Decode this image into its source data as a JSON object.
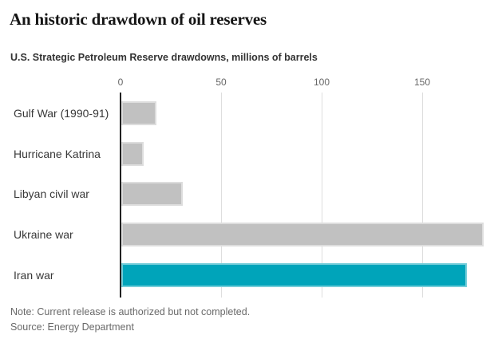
{
  "figure": {
    "title": "An historic drawdown of oil reserves",
    "subtitle": "U.S. Strategic Petroleum Reserve drawdowns, millions of barrels",
    "note": "Note: Current release is authorized but not completed.",
    "source": "Source: Energy Department"
  },
  "chart_data": {
    "type": "bar",
    "orientation": "horizontal",
    "title": "An historic drawdown of oil reserves",
    "subtitle": "U.S. Strategic Petroleum Reserve drawdowns, millions of barrels",
    "unit": "millions of barrels",
    "categories": [
      "Gulf War (1990-91)",
      "Hurricane Katrina",
      "Libyan civil war",
      "Ukraine war",
      "Iran war"
    ],
    "values": [
      17.3,
      11,
      30.6,
      180,
      172
    ],
    "highlight_category": "Iran war",
    "xticks": [
      0,
      50,
      100,
      150
    ],
    "xlim": [
      0,
      190
    ],
    "grid": "vertical gridlines at ticks, dark zero axis",
    "legend": "none",
    "colors": {
      "default_bar": "#c1c1c1",
      "highlight_bar": "#00a4ba",
      "gridline": "#dedede",
      "zero_axis": "#222222",
      "tick_label": "#666666",
      "category_label": "#383838",
      "note_text": "#696969"
    },
    "note": "Note: Current release is authorized but not completed.",
    "source": "Source: Energy Department"
  }
}
